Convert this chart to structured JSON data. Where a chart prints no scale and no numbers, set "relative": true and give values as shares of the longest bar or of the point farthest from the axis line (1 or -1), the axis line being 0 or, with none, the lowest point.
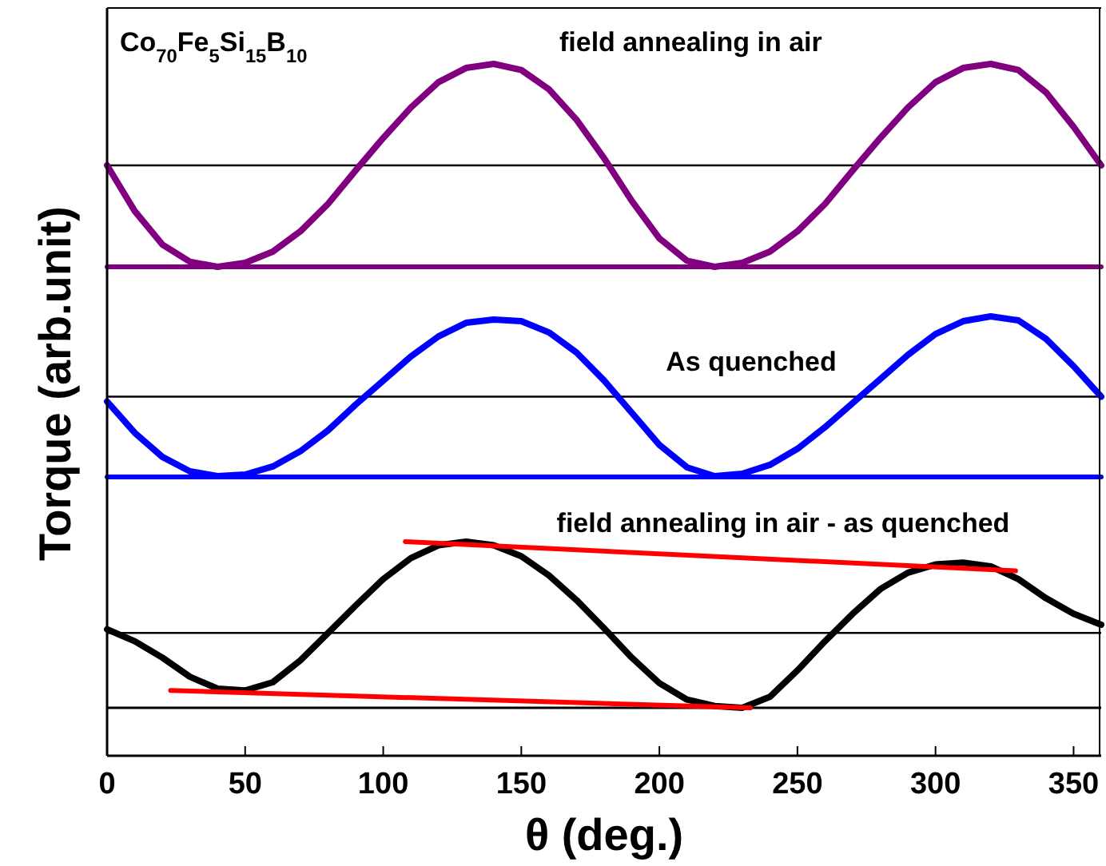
{
  "chart_data": [
    {
      "type": "line",
      "relative": true,
      "xlim": [
        0,
        360
      ],
      "tick_labels": false,
      "annotations": [
        "Co$_{70}$Fe$_{5}$Si$_{15}$B$_{10}$",
        "field annealing in air"
      ],
      "x": [
        0,
        10,
        20,
        30,
        40,
        50,
        60,
        70,
        80,
        90,
        100,
        110,
        120,
        130,
        140,
        150,
        160,
        170,
        180,
        190,
        200,
        210,
        220,
        230,
        240,
        250,
        260,
        270,
        280,
        290,
        300,
        310,
        320,
        330,
        340,
        350,
        360
      ],
      "series": [
        {
          "color": "#800080",
          "values": [
            0,
            -0.45,
            -0.78,
            -0.95,
            -1,
            -0.96,
            -0.85,
            -0.65,
            -0.38,
            -0.05,
            0.27,
            0.57,
            0.82,
            0.96,
            1,
            0.94,
            0.75,
            0.45,
            0.07,
            -0.35,
            -0.72,
            -0.94,
            -1,
            -0.96,
            -0.85,
            -0.65,
            -0.38,
            -0.05,
            0.27,
            0.57,
            0.82,
            0.96,
            1,
            0.94,
            0.72,
            0.38,
            0
          ]
        },
        {
          "type": "line",
          "color": "#800080",
          "x": [
            0,
            360
          ],
          "values": [
            -1,
            -1
          ]
        }
      ]
    },
    {
      "type": "line",
      "relative": true,
      "xlim": [
        0,
        360
      ],
      "tick_labels": false,
      "ylabel": "Torque (arb.unit)",
      "annotations": [
        "As quenched"
      ],
      "x": [
        0,
        10,
        20,
        30,
        40,
        50,
        60,
        70,
        80,
        90,
        100,
        110,
        120,
        130,
        140,
        150,
        160,
        170,
        180,
        190,
        200,
        210,
        220,
        230,
        240,
        250,
        260,
        270,
        280,
        290,
        300,
        310,
        320,
        330,
        340,
        350,
        360
      ],
      "series": [
        {
          "color": "#0000ff",
          "values": [
            -0.06,
            -0.45,
            -0.75,
            -0.93,
            -0.99,
            -0.97,
            -0.87,
            -0.68,
            -0.42,
            -0.1,
            0.2,
            0.5,
            0.75,
            0.92,
            0.96,
            0.94,
            0.8,
            0.55,
            0.2,
            -0.2,
            -0.6,
            -0.88,
            -0.99,
            -0.96,
            -0.85,
            -0.65,
            -0.38,
            -0.08,
            0.22,
            0.52,
            0.78,
            0.94,
            1,
            0.95,
            0.72,
            0.38,
            0
          ]
        },
        {
          "type": "line",
          "color": "#0000ff",
          "x": [
            0,
            360
          ],
          "values": [
            -1,
            -1
          ]
        }
      ]
    },
    {
      "type": "line",
      "relative": true,
      "xlim": [
        0,
        360
      ],
      "xticks": [
        0,
        50,
        100,
        150,
        200,
        250,
        300,
        350
      ],
      "tick_labels": "x",
      "xlabel": "θ (deg.)",
      "annotations": [
        "field annealing in air - as quenched"
      ],
      "x": [
        0,
        10,
        20,
        30,
        40,
        50,
        60,
        70,
        80,
        90,
        100,
        110,
        120,
        130,
        140,
        150,
        160,
        170,
        180,
        190,
        200,
        210,
        220,
        230,
        240,
        250,
        260,
        270,
        280,
        290,
        300,
        310,
        320,
        330,
        340,
        350,
        360
      ],
      "series": [
        {
          "color": "#000000",
          "values": [
            0.04,
            -0.09,
            -0.27,
            -0.48,
            -0.61,
            -0.63,
            -0.54,
            -0.3,
            0,
            0.3,
            0.59,
            0.82,
            0.96,
            1,
            0.96,
            0.84,
            0.63,
            0.36,
            0.05,
            -0.27,
            -0.55,
            -0.73,
            -0.8,
            -0.82,
            -0.7,
            -0.41,
            -0.09,
            0.21,
            0.48,
            0.66,
            0.75,
            0.77,
            0.73,
            0.59,
            0.38,
            0.21,
            0.09
          ]
        },
        {
          "type": "line",
          "color": "#ff0000",
          "x": [
            108,
            329
          ],
          "values": [
            1,
            0.68
          ]
        },
        {
          "type": "line",
          "color": "#ff0000",
          "x": [
            23,
            233
          ],
          "values": [
            -0.63,
            -0.82
          ]
        }
      ]
    }
  ]
}
